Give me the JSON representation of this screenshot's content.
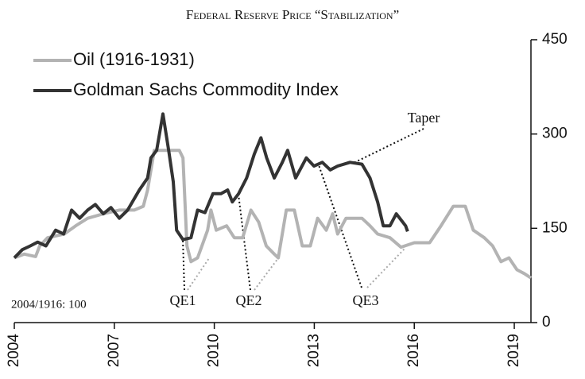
{
  "chart_data": {
    "type": "line",
    "title": "Federal Reserve Price “Stabilization”",
    "annotations": [
      "Taper",
      "QE1",
      "QE2",
      "QE3",
      "2004/1916: 100"
    ],
    "xlim": [
      2004,
      2019.5
    ],
    "xticks": [
      2004,
      2007,
      2010,
      2013,
      2016,
      2019
    ],
    "ylim": [
      0,
      450
    ],
    "yticks": [
      0,
      150,
      300,
      450
    ],
    "legend": "top-left",
    "series": [
      {
        "name": "Oil (1916-1931)",
        "color": "#b3b3b3",
        "x": [
          2004.0,
          2004.3,
          2004.64,
          2004.76,
          2005.0,
          2005.5,
          2005.84,
          2006.2,
          2006.67,
          2007.15,
          2007.6,
          2007.87,
          2008.0,
          2008.2,
          2008.95,
          2009.06,
          2009.18,
          2009.3,
          2009.5,
          2009.8,
          2009.9,
          2010.06,
          2010.37,
          2010.6,
          2010.85,
          2011.1,
          2011.33,
          2011.56,
          2011.8,
          2011.92,
          2012.16,
          2012.4,
          2012.64,
          2012.88,
          2013.1,
          2013.36,
          2013.55,
          2013.7,
          2013.95,
          2014.43,
          2014.67,
          2014.9,
          2015.27,
          2015.6,
          2016.0,
          2016.46,
          2016.8,
          2017.17,
          2017.53,
          2017.77,
          2018.1,
          2018.35,
          2018.6,
          2018.84,
          2019.08,
          2019.3,
          2019.5
        ],
        "values": [
          103,
          109,
          105,
          122,
          135,
          141,
          154,
          166,
          173,
          179,
          179,
          185,
          211,
          274,
          274,
          262,
          122,
          97,
          103,
          147,
          179,
          147,
          154,
          135,
          135,
          179,
          160,
          122,
          109,
          103,
          179,
          179,
          122,
          122,
          166,
          147,
          173,
          141,
          166,
          166,
          154,
          141,
          135,
          120,
          127,
          127,
          154,
          185,
          185,
          147,
          135,
          122,
          97,
          103,
          84,
          78,
          71
        ]
      },
      {
        "name": "Goldman Sachs Commodity Index",
        "color": "#333333",
        "x": [
          2004.0,
          2004.24,
          2004.48,
          2004.7,
          2004.95,
          2005.24,
          2005.48,
          2005.72,
          2005.96,
          2006.2,
          2006.43,
          2006.67,
          2006.9,
          2007.15,
          2007.4,
          2007.75,
          2008.0,
          2008.1,
          2008.27,
          2008.46,
          2008.63,
          2008.77,
          2008.87,
          2009.06,
          2009.3,
          2009.5,
          2009.72,
          2009.96,
          2010.2,
          2010.4,
          2010.54,
          2010.73,
          2010.97,
          2011.2,
          2011.4,
          2011.57,
          2011.8,
          2012.04,
          2012.2,
          2012.44,
          2012.76,
          2012.99,
          2013.24,
          2013.48,
          2013.7,
          2014.07,
          2014.43,
          2014.67,
          2014.9,
          2015.07,
          2015.27,
          2015.46,
          2015.74,
          2015.8
        ],
        "values": [
          103,
          116,
          122,
          128,
          122,
          147,
          141,
          179,
          166,
          179,
          188,
          173,
          183,
          166,
          179,
          211,
          230,
          262,
          274,
          332,
          274,
          224,
          147,
          132,
          135,
          179,
          175,
          205,
          205,
          211,
          192,
          205,
          230,
          268,
          294,
          262,
          230,
          255,
          274,
          230,
          262,
          249,
          255,
          243,
          249,
          255,
          252,
          230,
          192,
          154,
          154,
          173,
          154,
          145
        ]
      }
    ]
  }
}
